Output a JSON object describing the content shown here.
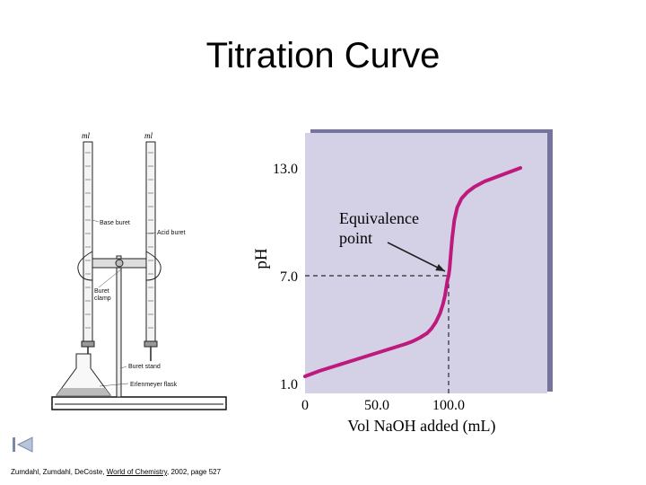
{
  "slide": {
    "title": "Titration Curve"
  },
  "apparatus": {
    "unit_label_left": "ml",
    "unit_label_right": "ml",
    "labels": {
      "base_buret": "Base buret",
      "acid_buret": "Acid buret",
      "buret_clamp_line1": "Buret",
      "buret_clamp_line2": "clamp",
      "buret_stand": "Buret stand",
      "erlenmeyer_flask": "Erlenmeyer flask"
    }
  },
  "chart_data": {
    "type": "line",
    "title": "",
    "xlabel": "Vol NaOH added (mL)",
    "ylabel": "pH",
    "xlim": [
      0,
      150
    ],
    "ylim": [
      1.0,
      13.0
    ],
    "x_ticks": [
      "0",
      "50.0",
      "100.0"
    ],
    "y_ticks": [
      "1.0",
      "7.0",
      "13.0"
    ],
    "series": [
      {
        "x": [
          0,
          10,
          20,
          30,
          40,
          50,
          60,
          70,
          75,
          80,
          85,
          88,
          91,
          94,
          96,
          97.5,
          98.5,
          99.3,
          100,
          100.7,
          101.5,
          102.5,
          104,
          106,
          109,
          113,
          118,
          125,
          135,
          145,
          150
        ],
        "y": [
          1.4,
          1.7,
          1.95,
          2.2,
          2.45,
          2.7,
          2.95,
          3.2,
          3.35,
          3.55,
          3.8,
          4.05,
          4.4,
          4.9,
          5.4,
          5.9,
          6.4,
          6.8,
          7.0,
          7.4,
          8.2,
          9.1,
          10.1,
          10.8,
          11.3,
          11.65,
          11.95,
          12.25,
          12.55,
          12.85,
          13.0
        ]
      }
    ],
    "annotation": {
      "text_line1": "Equivalence",
      "text_line2": "point",
      "x": 100,
      "y": 7.0
    },
    "colors": {
      "plot_background": "#d4d1e6",
      "plot_shadow": "#76739c",
      "curve": "#be1a7d",
      "guide_line": "#2b2b2b"
    }
  },
  "citation": {
    "authors": "Zumdahl, Zumdahl, DeCoste,",
    "book": "World of Chemistry",
    "rest": "2002, page 527"
  },
  "nav": {
    "icon": "back-to-start-icon"
  }
}
